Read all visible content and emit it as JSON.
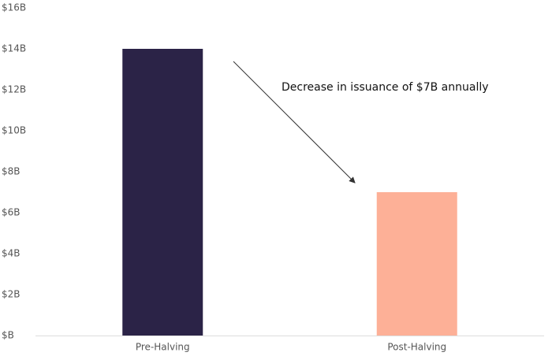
{
  "chart_data": {
    "type": "bar",
    "annotation": "Decrease in issuance of $7B annually",
    "categories": [
      "Pre-Halving",
      "Post-Halving"
    ],
    "values": [
      14,
      7
    ],
    "colors": [
      "#2b2347",
      "#fdb097"
    ],
    "ylim": [
      0,
      16
    ],
    "yticks": [
      {
        "value": 0,
        "label": "$B"
      },
      {
        "value": 2,
        "label": "$2B"
      },
      {
        "value": 4,
        "label": "$4B"
      },
      {
        "value": 6,
        "label": "$6B"
      },
      {
        "value": 8,
        "label": "$8B"
      },
      {
        "value": 10,
        "label": "$10B"
      },
      {
        "value": 12,
        "label": "$12B"
      },
      {
        "value": 14,
        "label": "$14B"
      },
      {
        "value": 16,
        "label": "$16B"
      }
    ],
    "grid": false
  }
}
